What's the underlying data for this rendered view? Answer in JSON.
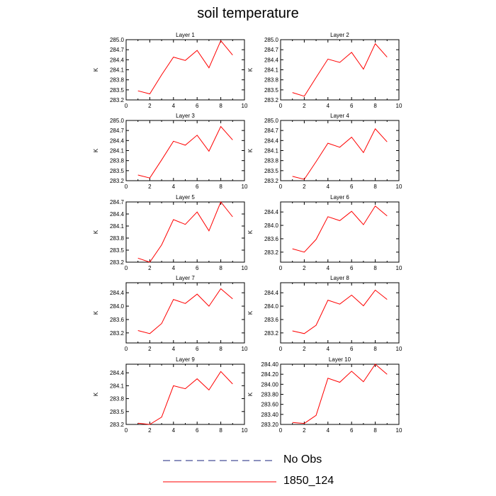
{
  "title": "soil temperature",
  "legend": [
    {
      "label": "No Obs",
      "color": "#1a237e",
      "style": "dashed"
    },
    {
      "label": "1850_124",
      "color": "#ff0000",
      "style": "solid"
    }
  ],
  "chart_data": [
    {
      "type": "line",
      "title": "Layer 1",
      "ylabel": "K",
      "xlim": [
        0,
        10
      ],
      "ylim": [
        283.2,
        285.0
      ],
      "xticks": [
        0,
        2,
        4,
        6,
        8,
        10
      ],
      "yticks": [
        "283.2",
        "283.5",
        "283.8",
        "284.1",
        "284.4",
        "284.7",
        "285.0"
      ],
      "series": [
        {
          "name": "1850_124",
          "x": [
            1,
            2,
            3,
            4,
            5,
            6,
            7,
            8,
            9
          ],
          "values": [
            283.47,
            283.38,
            283.95,
            284.48,
            284.38,
            284.68,
            284.16,
            284.97,
            284.54
          ]
        }
      ]
    },
    {
      "type": "line",
      "title": "Layer 2",
      "ylabel": "K",
      "xlim": [
        0,
        10
      ],
      "ylim": [
        283.2,
        285.0
      ],
      "xticks": [
        0,
        2,
        4,
        6,
        8,
        10
      ],
      "yticks": [
        "283.2",
        "283.5",
        "283.8",
        "284.1",
        "284.4",
        "284.7",
        "285.0"
      ],
      "series": [
        {
          "name": "1850_124",
          "x": [
            1,
            2,
            3,
            4,
            5,
            6,
            7,
            8,
            9
          ],
          "values": [
            283.42,
            283.31,
            283.87,
            284.42,
            284.32,
            284.62,
            284.12,
            284.88,
            284.48
          ]
        }
      ]
    },
    {
      "type": "line",
      "title": "Layer 3",
      "ylabel": "K",
      "xlim": [
        0,
        10
      ],
      "ylim": [
        283.2,
        285.0
      ],
      "xticks": [
        0,
        2,
        4,
        6,
        8,
        10
      ],
      "yticks": [
        "283.2",
        "283.5",
        "283.8",
        "284.1",
        "284.4",
        "284.7",
        "285.0"
      ],
      "series": [
        {
          "name": "1850_124",
          "x": [
            1,
            2,
            3,
            4,
            5,
            6,
            7,
            8,
            9
          ],
          "values": [
            283.37,
            283.28,
            283.82,
            284.38,
            284.26,
            284.56,
            284.08,
            284.82,
            284.42
          ]
        }
      ]
    },
    {
      "type": "line",
      "title": "Layer 4",
      "ylabel": "K",
      "xlim": [
        0,
        10
      ],
      "ylim": [
        283.2,
        285.0
      ],
      "xticks": [
        0,
        2,
        4,
        6,
        8,
        10
      ],
      "yticks": [
        "283.2",
        "283.5",
        "283.8",
        "284.1",
        "284.4",
        "284.7",
        "285.0"
      ],
      "series": [
        {
          "name": "1850_124",
          "x": [
            1,
            2,
            3,
            4,
            5,
            6,
            7,
            8,
            9
          ],
          "values": [
            283.33,
            283.24,
            283.77,
            284.32,
            284.2,
            284.5,
            284.04,
            284.75,
            284.36
          ]
        }
      ]
    },
    {
      "type": "line",
      "title": "Layer 5",
      "ylabel": "K",
      "xlim": [
        0,
        10
      ],
      "ylim": [
        283.2,
        284.7
      ],
      "xticks": [
        0,
        2,
        4,
        6,
        8,
        10
      ],
      "yticks": [
        "283.2",
        "283.5",
        "283.8",
        "284.1",
        "284.4",
        "284.7"
      ],
      "series": [
        {
          "name": "1850_124",
          "x": [
            1,
            2,
            3,
            4,
            5,
            6,
            7,
            8,
            9
          ],
          "values": [
            283.3,
            283.2,
            283.63,
            284.26,
            284.14,
            284.45,
            283.98,
            284.7,
            284.33
          ]
        }
      ]
    },
    {
      "type": "line",
      "title": "Layer 6",
      "ylabel": "K",
      "xlim": [
        0,
        10
      ],
      "ylim": [
        282.9,
        284.7
      ],
      "xticks": [
        0,
        2,
        4,
        6,
        8,
        10
      ],
      "yticks": [
        "283.2",
        "283.6",
        "284.0",
        "284.4"
      ],
      "series": [
        {
          "name": "1850_124",
          "x": [
            1,
            2,
            3,
            4,
            5,
            6,
            7,
            8,
            9
          ],
          "values": [
            283.3,
            283.2,
            283.58,
            284.26,
            284.14,
            284.42,
            284.02,
            284.58,
            284.28
          ]
        }
      ]
    },
    {
      "type": "line",
      "title": "Layer 7",
      "ylabel": "K",
      "xlim": [
        0,
        10
      ],
      "ylim": [
        282.9,
        284.7
      ],
      "xticks": [
        0,
        2,
        4,
        6,
        8,
        10
      ],
      "yticks": [
        "283.2",
        "283.6",
        "284.0",
        "284.4"
      ],
      "series": [
        {
          "name": "1850_124",
          "x": [
            1,
            2,
            3,
            4,
            5,
            6,
            7,
            8,
            9
          ],
          "values": [
            283.27,
            283.18,
            283.48,
            284.2,
            284.08,
            284.36,
            284.0,
            284.52,
            284.22
          ]
        }
      ]
    },
    {
      "type": "line",
      "title": "Layer 8",
      "ylabel": "K",
      "xlim": [
        0,
        10
      ],
      "ylim": [
        282.9,
        284.7
      ],
      "xticks": [
        0,
        2,
        4,
        6,
        8,
        10
      ],
      "yticks": [
        "283.2",
        "283.6",
        "284.0",
        "284.4"
      ],
      "series": [
        {
          "name": "1850_124",
          "x": [
            1,
            2,
            3,
            4,
            5,
            6,
            7,
            8,
            9
          ],
          "values": [
            283.26,
            283.18,
            283.43,
            284.18,
            284.06,
            284.33,
            284.01,
            284.48,
            284.2
          ]
        }
      ]
    },
    {
      "type": "line",
      "title": "Layer 9",
      "ylabel": "K",
      "xlim": [
        0,
        10
      ],
      "ylim": [
        283.2,
        284.6
      ],
      "xticks": [
        0,
        2,
        4,
        6,
        8,
        10
      ],
      "yticks": [
        "283.2",
        "283.5",
        "283.8",
        "284.1",
        "284.4"
      ],
      "series": [
        {
          "name": "1850_124",
          "x": [
            1,
            2,
            3,
            4,
            5,
            6,
            7,
            8,
            9
          ],
          "values": [
            283.23,
            283.2,
            283.37,
            284.1,
            284.03,
            284.26,
            284.0,
            284.43,
            284.14
          ]
        }
      ]
    },
    {
      "type": "line",
      "title": "Layer 10",
      "ylabel": "K",
      "xlim": [
        0,
        10
      ],
      "ylim": [
        283.2,
        284.4
      ],
      "xticks": [
        0,
        2,
        4,
        6,
        8,
        10
      ],
      "yticks": [
        "283.20",
        "283.40",
        "283.60",
        "283.80",
        "284.00",
        "284.20",
        "284.40"
      ],
      "series": [
        {
          "name": "1850_124",
          "x": [
            1,
            2,
            3,
            4,
            5,
            6,
            7,
            8,
            9
          ],
          "values": [
            283.24,
            283.22,
            283.38,
            284.12,
            284.04,
            284.26,
            284.05,
            284.4,
            284.2
          ]
        }
      ]
    }
  ]
}
